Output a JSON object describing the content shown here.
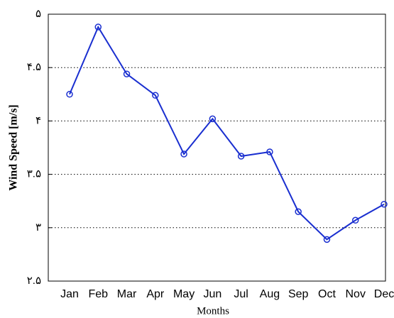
{
  "chart_data": {
    "type": "line",
    "x_label": "Months",
    "y_label": "Wind Speed [m/s]",
    "categories": [
      "Jan",
      "Feb",
      "Mar",
      "Apr",
      "May",
      "Jun",
      "Jul",
      "Aug",
      "Sep",
      "Oct",
      "Nov",
      "Dec"
    ],
    "series": [
      {
        "name": "Wind Speed",
        "color": "#1a2fd0",
        "values": [
          4.25,
          4.88,
          4.44,
          4.24,
          3.69,
          4.02,
          3.67,
          3.71,
          3.15,
          2.89,
          3.07,
          3.22
        ]
      }
    ],
    "ylim": [
      2.5,
      5
    ],
    "yticks": [
      {
        "value": 2.5,
        "label": "۲.۵"
      },
      {
        "value": 3,
        "label": "۳"
      },
      {
        "value": 3.5,
        "label": "۳.۵"
      },
      {
        "value": 4,
        "label": "۴"
      },
      {
        "value": 4.5,
        "label": "۴.۵"
      },
      {
        "value": 5,
        "label": "۵"
      }
    ],
    "grid": true
  }
}
